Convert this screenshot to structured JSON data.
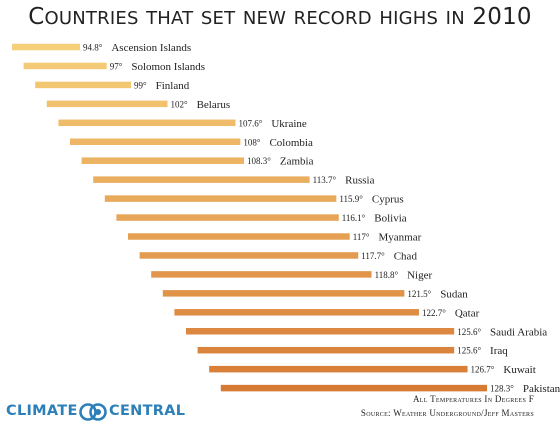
{
  "title": "Countries that set new record highs in 2010",
  "chart_data": {
    "type": "bar",
    "orientation": "horizontal",
    "unit": "°",
    "categories": [
      "Ascension Islands",
      "Solomon Islands",
      "Finland",
      "Belarus",
      "Ukraine",
      "Colombia",
      "Zambia",
      "Russia",
      "Cyprus",
      "Bolivia",
      "Myanmar",
      "Chad",
      "Niger",
      "Sudan",
      "Qatar",
      "Saudi Arabia",
      "Iraq",
      "Kuwait",
      "Pakistan"
    ],
    "values": [
      94.8,
      97,
      99,
      102,
      107.6,
      108,
      108.3,
      113.7,
      115.9,
      116.1,
      117,
      117.7,
      118.8,
      121.5,
      122.7,
      125.6,
      125.6,
      126.7,
      128.3
    ],
    "value_labels": [
      "94.8°",
      "97°",
      "99°",
      "102°",
      "107.6°",
      "108°",
      "108.3°",
      "113.7°",
      "115.9°",
      "116.1°",
      "117°",
      "117.7°",
      "118.8°",
      "121.5°",
      "122.7°",
      "125.6°",
      "125.6°",
      "126.7°",
      "128.3°"
    ],
    "colors": {
      "light": "#f6cf7a",
      "dark": "#d77a34"
    }
  },
  "logo": {
    "word1": "CLIMATE",
    "word2": "CENTRAL",
    "color": "#2c7fb8"
  },
  "notes": {
    "units": "All Temperatures In Degrees F",
    "source": "Source: Weather Underground/Jeff Masters"
  }
}
